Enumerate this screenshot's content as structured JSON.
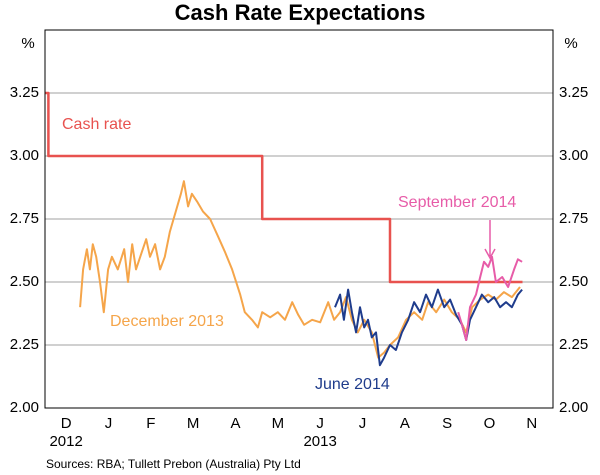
{
  "chart_data": {
    "type": "line",
    "title": "Cash Rate Expectations",
    "y_unit": "%",
    "categories": [
      "D",
      "J",
      "F",
      "M",
      "A",
      "M",
      "J",
      "J",
      "A",
      "S",
      "O",
      "N"
    ],
    "category_sublabels": [
      "2012",
      null,
      null,
      null,
      null,
      null,
      "2013",
      null,
      null,
      null,
      null,
      null
    ],
    "xlim": [
      0,
      12
    ],
    "ylim": [
      2.0,
      3.5
    ],
    "yticks": [
      {
        "value": 2.0,
        "label": "2.00"
      },
      {
        "value": 2.25,
        "label": "2.25"
      },
      {
        "value": 2.5,
        "label": "2.50"
      },
      {
        "value": 2.75,
        "label": "2.75"
      },
      {
        "value": 3.0,
        "label": "3.00"
      },
      {
        "value": 3.25,
        "label": "3.25"
      }
    ],
    "grid": true,
    "source": "Sources: RBA; Tullett Prebon (Australia) Pty Ltd",
    "series": [
      {
        "name": "Cash rate",
        "color": "#e8524f",
        "x": [
          0,
          0.08,
          0.08,
          5.13,
          5.13,
          8.15,
          8.15,
          11.28
        ],
        "values": [
          3.25,
          3.25,
          3.0,
          3.0,
          2.75,
          2.75,
          2.5,
          2.5
        ]
      },
      {
        "name": "December 2013",
        "color": "#f5a54a",
        "x": [
          0.83,
          0.9,
          0.99,
          1.06,
          1.13,
          1.21,
          1.3,
          1.39,
          1.49,
          1.58,
          1.72,
          1.87,
          1.96,
          2.06,
          2.15,
          2.29,
          2.39,
          2.48,
          2.6,
          2.72,
          2.83,
          2.95,
          3.09,
          3.21,
          3.28,
          3.38,
          3.47,
          3.59,
          3.73,
          3.9,
          4.09,
          4.25,
          4.42,
          4.61,
          4.72,
          4.89,
          5.03,
          5.13,
          5.32,
          5.5,
          5.67,
          5.84,
          5.98,
          6.12,
          6.31,
          6.5,
          6.69,
          6.83,
          6.97,
          7.11,
          7.25,
          7.39,
          7.54,
          7.72,
          7.87,
          8.01,
          8.15,
          8.34,
          8.53,
          8.72,
          8.91,
          9.05,
          9.24,
          9.43,
          9.61,
          9.8,
          9.95,
          10.09,
          10.28,
          10.47,
          10.65,
          10.84,
          11.03,
          11.22
        ],
        "values": [
          2.4,
          2.55,
          2.63,
          2.55,
          2.65,
          2.6,
          2.5,
          2.38,
          2.55,
          2.6,
          2.55,
          2.63,
          2.5,
          2.65,
          2.55,
          2.62,
          2.67,
          2.6,
          2.65,
          2.55,
          2.6,
          2.7,
          2.78,
          2.85,
          2.9,
          2.8,
          2.85,
          2.82,
          2.78,
          2.75,
          2.68,
          2.62,
          2.55,
          2.45,
          2.38,
          2.35,
          2.32,
          2.38,
          2.36,
          2.38,
          2.35,
          2.42,
          2.37,
          2.33,
          2.35,
          2.34,
          2.42,
          2.35,
          2.38,
          2.44,
          2.35,
          2.3,
          2.35,
          2.3,
          2.2,
          2.22,
          2.25,
          2.28,
          2.35,
          2.38,
          2.35,
          2.42,
          2.38,
          2.43,
          2.38,
          2.35,
          2.3,
          2.4,
          2.43,
          2.45,
          2.43,
          2.46,
          2.44,
          2.48
        ]
      },
      {
        "name": "June 2014",
        "color": "#1f3c8c",
        "x": [
          6.85,
          6.97,
          7.06,
          7.16,
          7.25,
          7.35,
          7.44,
          7.54,
          7.63,
          7.72,
          7.82,
          7.91,
          8.01,
          8.15,
          8.29,
          8.43,
          8.58,
          8.72,
          8.86,
          9.0,
          9.14,
          9.28,
          9.43,
          9.57,
          9.71,
          9.85,
          9.95,
          10.04,
          10.18,
          10.32,
          10.47,
          10.61,
          10.75,
          10.89,
          11.03,
          11.17,
          11.27
        ],
        "values": [
          2.4,
          2.45,
          2.35,
          2.47,
          2.38,
          2.3,
          2.4,
          2.32,
          2.35,
          2.28,
          2.3,
          2.17,
          2.2,
          2.25,
          2.23,
          2.3,
          2.35,
          2.42,
          2.38,
          2.45,
          2.4,
          2.47,
          2.4,
          2.43,
          2.37,
          2.33,
          2.27,
          2.35,
          2.4,
          2.45,
          2.42,
          2.44,
          2.4,
          2.42,
          2.4,
          2.45,
          2.47
        ]
      },
      {
        "name": "September 2014",
        "color": "#e75ca8",
        "x": [
          9.76,
          9.85,
          9.95,
          10.04,
          10.18,
          10.28,
          10.37,
          10.47,
          10.56,
          10.65,
          10.8,
          10.94,
          11.08,
          11.17,
          11.27
        ],
        "values": [
          2.38,
          2.33,
          2.27,
          2.4,
          2.45,
          2.52,
          2.58,
          2.56,
          2.6,
          2.5,
          2.52,
          2.48,
          2.55,
          2.59,
          2.58
        ]
      }
    ]
  }
}
